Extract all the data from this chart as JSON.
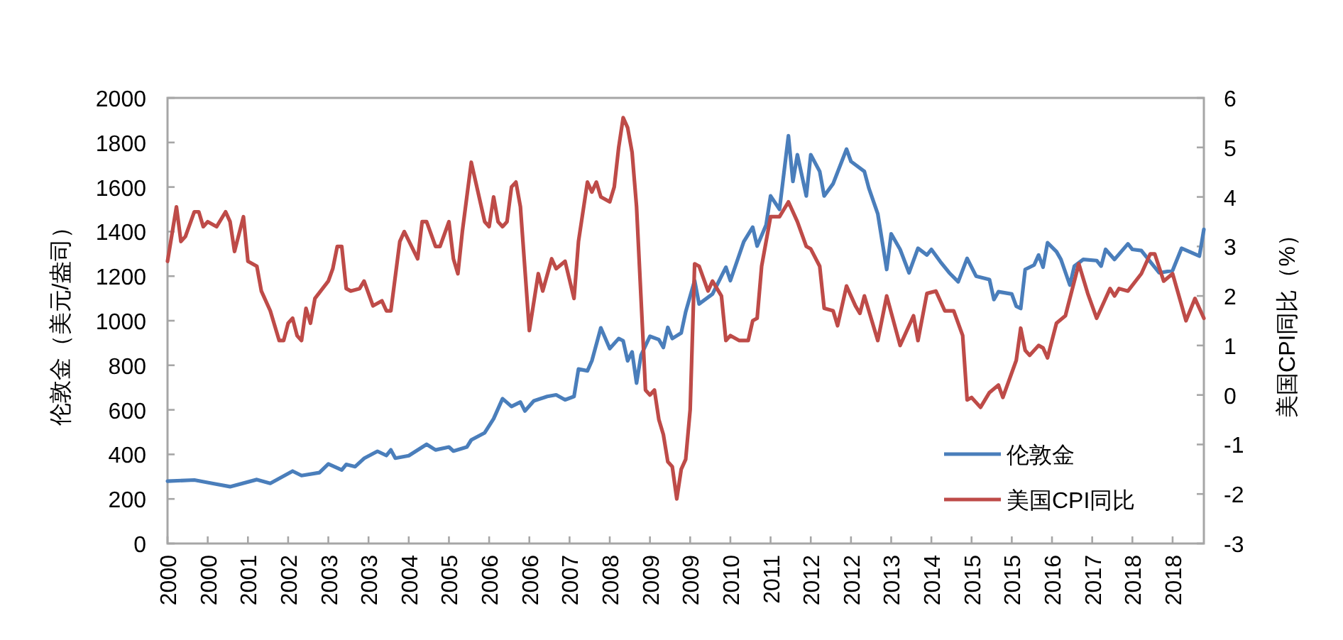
{
  "chart_data": {
    "type": "line",
    "ylabel": "伦敦金（美元/盎司）",
    "y2label": "美国CPI同比（%）",
    "xlim": [
      "2000-01",
      "2019-05"
    ],
    "xticks": [
      {
        "value": "2000-01",
        "label": "2000"
      },
      {
        "value": "2000-10",
        "label": "2000"
      },
      {
        "value": "2001-07",
        "label": "2001"
      },
      {
        "value": "2002-04",
        "label": "2002"
      },
      {
        "value": "2003-01",
        "label": "2003"
      },
      {
        "value": "2003-10",
        "label": "2003"
      },
      {
        "value": "2004-07",
        "label": "2004"
      },
      {
        "value": "2005-04",
        "label": "2005"
      },
      {
        "value": "2006-01",
        "label": "2006"
      },
      {
        "value": "2006-10",
        "label": "2006"
      },
      {
        "value": "2007-07",
        "label": "2007"
      },
      {
        "value": "2008-04",
        "label": "2008"
      },
      {
        "value": "2009-01",
        "label": "2009"
      },
      {
        "value": "2009-10",
        "label": "2009"
      },
      {
        "value": "2010-07",
        "label": "2010"
      },
      {
        "value": "2011-04",
        "label": "2011"
      },
      {
        "value": "2012-01",
        "label": "2012"
      },
      {
        "value": "2012-10",
        "label": "2012"
      },
      {
        "value": "2013-07",
        "label": "2013"
      },
      {
        "value": "2014-04",
        "label": "2014"
      },
      {
        "value": "2015-01",
        "label": "2015"
      },
      {
        "value": "2015-10",
        "label": "2015"
      },
      {
        "value": "2016-07",
        "label": "2016"
      },
      {
        "value": "2017-04",
        "label": "2017"
      },
      {
        "value": "2018-01",
        "label": "2018"
      },
      {
        "value": "2018-10",
        "label": "2018"
      }
    ],
    "ylim": [
      0,
      2000
    ],
    "yticks": [
      0,
      200,
      400,
      600,
      800,
      1000,
      1200,
      1400,
      1600,
      1800,
      2000
    ],
    "y2lim": [
      -3,
      6
    ],
    "y2ticks": [
      -3,
      -2,
      -1,
      0,
      1,
      2,
      3,
      4,
      5,
      6
    ],
    "legend": "bottom right",
    "series": [
      {
        "name": "伦敦金",
        "color": "#4a7ebb",
        "x": [
          "2000-01",
          "2000-07",
          "2000-11",
          "2001-03",
          "2001-09",
          "2001-12",
          "2002-05",
          "2002-07",
          "2002-11",
          "2003-01",
          "2003-04",
          "2003-05",
          "2003-07",
          "2003-09",
          "2003-12",
          "2004-02",
          "2004-03",
          "2004-04",
          "2004-07",
          "2004-11",
          "2005-01",
          "2005-04",
          "2005-05",
          "2005-08",
          "2005-09",
          "2005-12",
          "2006-02",
          "2006-04",
          "2006-06",
          "2006-08",
          "2006-09",
          "2006-11",
          "2007-02",
          "2007-04",
          "2007-06",
          "2007-08",
          "2007-09",
          "2007-11",
          "2007-12",
          "2008-02",
          "2008-04",
          "2008-06",
          "2008-07",
          "2008-08",
          "2008-09",
          "2008-10",
          "2008-11",
          "2009-01",
          "2009-03",
          "2009-04",
          "2009-05",
          "2009-06",
          "2009-08",
          "2009-09",
          "2009-11",
          "2009-12",
          "2010-03",
          "2010-06",
          "2010-07",
          "2010-10",
          "2010-12",
          "2011-01",
          "2011-03",
          "2011-04",
          "2011-06",
          "2011-08",
          "2011-09",
          "2011-10",
          "2011-12",
          "2012-01",
          "2012-03",
          "2012-04",
          "2012-06",
          "2012-09",
          "2012-10",
          "2013-01",
          "2013-02",
          "2013-04",
          "2013-06",
          "2013-07",
          "2013-09",
          "2013-11",
          "2014-01",
          "2014-03",
          "2014-04",
          "2014-06",
          "2014-08",
          "2014-10",
          "2014-12",
          "2015-02",
          "2015-05",
          "2015-06",
          "2015-07",
          "2015-10",
          "2015-11",
          "2015-12",
          "2016-01",
          "2016-03",
          "2016-04",
          "2016-05",
          "2016-06",
          "2016-08",
          "2016-09",
          "2016-11",
          "2016-12",
          "2017-02",
          "2017-05",
          "2017-06",
          "2017-07",
          "2017-09",
          "2017-12",
          "2018-01",
          "2018-03",
          "2018-05",
          "2018-07",
          "2018-10",
          "2018-12",
          "2019-04",
          "2019-05"
        ],
        "values": [
          280,
          285,
          270,
          255,
          287,
          270,
          325,
          305,
          318,
          357,
          330,
          355,
          345,
          382,
          414,
          395,
          420,
          383,
          394,
          445,
          420,
          433,
          415,
          433,
          465,
          497,
          560,
          650,
          615,
          635,
          595,
          640,
          660,
          667,
          645,
          660,
          783,
          775,
          820,
          968,
          875,
          920,
          910,
          820,
          860,
          720,
          845,
          930,
          915,
          880,
          970,
          920,
          945,
          1040,
          1180,
          1075,
          1120,
          1240,
          1180,
          1355,
          1420,
          1335,
          1430,
          1560,
          1500,
          1830,
          1625,
          1745,
          1560,
          1745,
          1670,
          1560,
          1615,
          1770,
          1715,
          1670,
          1595,
          1480,
          1230,
          1390,
          1320,
          1215,
          1325,
          1295,
          1320,
          1265,
          1215,
          1175,
          1280,
          1200,
          1185,
          1095,
          1130,
          1120,
          1065,
          1055,
          1230,
          1250,
          1295,
          1240,
          1350,
          1310,
          1275,
          1160,
          1245,
          1275,
          1270,
          1245,
          1320,
          1275,
          1345,
          1320,
          1315,
          1265,
          1215,
          1225,
          1325,
          1290,
          1410
        ]
      },
      {
        "name": "美国CPI同比",
        "color": "#be4b48",
        "axis": "y2",
        "x": [
          "2000-01",
          "2000-03",
          "2000-04",
          "2000-05",
          "2000-07",
          "2000-08",
          "2000-09",
          "2000-10",
          "2000-12",
          "2001-02",
          "2001-03",
          "2001-04",
          "2001-06",
          "2001-07",
          "2001-09",
          "2001-10",
          "2001-12",
          "2002-02",
          "2002-03",
          "2002-04",
          "2002-05",
          "2002-06",
          "2002-07",
          "2002-08",
          "2002-09",
          "2002-10",
          "2003-01",
          "2003-02",
          "2003-03",
          "2003-04",
          "2003-05",
          "2003-06",
          "2003-08",
          "2003-09",
          "2003-11",
          "2004-01",
          "2004-02",
          "2004-03",
          "2004-05",
          "2004-06",
          "2004-09",
          "2004-10",
          "2004-11",
          "2005-01",
          "2005-02",
          "2005-04",
          "2005-05",
          "2005-06",
          "2005-07",
          "2005-09",
          "2005-10",
          "2005-12",
          "2006-01",
          "2006-02",
          "2006-03",
          "2006-04",
          "2006-05",
          "2006-06",
          "2006-07",
          "2006-08",
          "2006-10",
          "2006-12",
          "2007-01",
          "2007-03",
          "2007-04",
          "2007-06",
          "2007-08",
          "2007-09",
          "2007-11",
          "2007-12",
          "2008-01",
          "2008-02",
          "2008-04",
          "2008-05",
          "2008-06",
          "2008-07",
          "2008-08",
          "2008-09",
          "2008-10",
          "2008-12",
          "2009-01",
          "2009-02",
          "2009-03",
          "2009-04",
          "2009-05",
          "2009-06",
          "2009-07",
          "2009-08",
          "2009-09",
          "2009-10",
          "2009-11",
          "2009-12",
          "2010-02",
          "2010-03",
          "2010-05",
          "2010-06",
          "2010-07",
          "2010-09",
          "2010-11",
          "2010-12",
          "2011-01",
          "2011-02",
          "2011-04",
          "2011-06",
          "2011-07",
          "2011-08",
          "2011-10",
          "2011-12",
          "2012-01",
          "2012-03",
          "2012-04",
          "2012-06",
          "2012-07",
          "2012-09",
          "2012-11",
          "2012-12",
          "2013-01",
          "2013-04",
          "2013-06",
          "2013-09",
          "2013-12",
          "2014-01",
          "2014-03",
          "2014-05",
          "2014-07",
          "2014-09",
          "2014-11",
          "2014-12",
          "2015-01",
          "2015-03",
          "2015-05",
          "2015-07",
          "2015-08",
          "2015-11",
          "2015-12",
          "2016-01",
          "2016-02",
          "2016-04",
          "2016-05",
          "2016-06",
          "2016-08",
          "2016-10",
          "2017-01",
          "2017-03",
          "2017-05",
          "2017-08",
          "2017-09",
          "2017-10",
          "2017-12",
          "2018-03",
          "2018-05",
          "2018-06",
          "2018-08",
          "2018-10",
          "2019-01",
          "2019-03",
          "2019-05"
        ],
        "values": [
          2.7,
          3.8,
          3.1,
          3.2,
          3.7,
          3.7,
          3.4,
          3.5,
          3.4,
          3.7,
          3.5,
          2.9,
          3.6,
          2.7,
          2.6,
          2.1,
          1.7,
          1.1,
          1.1,
          1.45,
          1.55,
          1.2,
          1.1,
          1.75,
          1.45,
          1.95,
          2.3,
          2.55,
          3.0,
          3.0,
          2.15,
          2.1,
          2.15,
          2.3,
          1.8,
          1.9,
          1.7,
          1.7,
          3.1,
          3.3,
          2.75,
          3.5,
          3.5,
          3.0,
          3.0,
          3.5,
          2.75,
          2.45,
          3.3,
          4.7,
          4.3,
          3.5,
          3.4,
          4.0,
          3.5,
          3.4,
          3.5,
          4.2,
          4.3,
          3.8,
          1.3,
          2.45,
          2.1,
          2.75,
          2.55,
          2.7,
          1.95,
          3.1,
          4.3,
          4.1,
          4.3,
          4.0,
          3.9,
          4.2,
          5.0,
          5.6,
          5.4,
          4.9,
          3.8,
          0.1,
          0.0,
          0.1,
          -0.5,
          -0.8,
          -1.35,
          -1.45,
          -2.1,
          -1.5,
          -1.3,
          -0.3,
          2.65,
          2.6,
          2.1,
          2.3,
          2.0,
          1.1,
          1.2,
          1.1,
          1.1,
          1.5,
          1.55,
          2.6,
          3.6,
          3.6,
          3.75,
          3.9,
          3.5,
          3.0,
          2.95,
          2.6,
          1.75,
          1.7,
          1.4,
          2.2,
          1.8,
          1.65,
          2.0,
          1.1,
          2.0,
          1.0,
          1.6,
          1.1,
          2.05,
          2.1,
          1.7,
          1.7,
          1.2,
          -0.1,
          -0.05,
          -0.25,
          0.05,
          0.2,
          -0.05,
          0.7,
          1.35,
          0.9,
          0.8,
          1.0,
          0.95,
          0.75,
          1.45,
          1.6,
          2.65,
          2.05,
          1.55,
          2.15,
          2.0,
          2.15,
          2.1,
          2.45,
          2.85,
          2.85,
          2.3,
          2.45,
          1.5,
          1.95,
          1.55
        ]
      }
    ]
  }
}
